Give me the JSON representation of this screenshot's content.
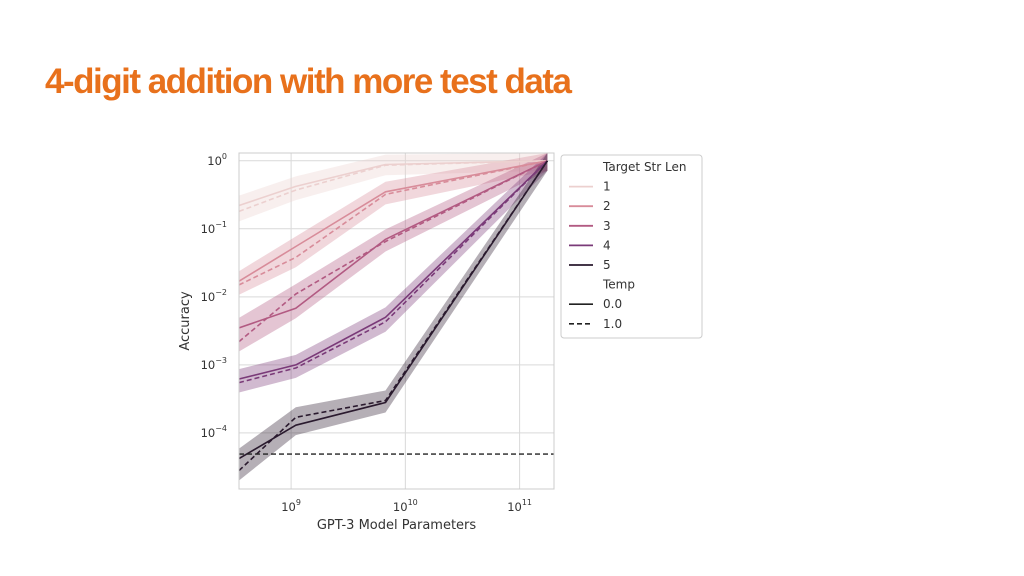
{
  "slide": {
    "title": "4-digit addition with more test data"
  },
  "chart_data": {
    "type": "line",
    "xlabel": "GPT-3 Model Parameters",
    "ylabel": "Accuracy",
    "x_scale": "log",
    "y_scale": "log",
    "xlim": [
      350000000.0,
      200000000000.0
    ],
    "ylim": [
      1.5e-05,
      1.3
    ],
    "x_ticks": [
      {
        "v": 1000000000.0,
        "base": "10",
        "exp": "9"
      },
      {
        "v": 10000000000.0,
        "base": "10",
        "exp": "10"
      },
      {
        "v": 100000000000.0,
        "base": "10",
        "exp": "11"
      }
    ],
    "y_ticks": [
      {
        "v": 1,
        "base": "10",
        "exp": "0"
      },
      {
        "v": 0.1,
        "base": "10",
        "exp": "−1"
      },
      {
        "v": 0.01,
        "base": "10",
        "exp": "−2"
      },
      {
        "v": 0.001,
        "base": "10",
        "exp": "−3"
      },
      {
        "v": 0.0001,
        "base": "10",
        "exp": "−4"
      }
    ],
    "grid": true,
    "x": [
      350000000.0,
      1100000000.0,
      6700000000.0,
      175000000000.0
    ],
    "series": [
      {
        "target_str_len": "1",
        "temp": "0.0",
        "color": "#ecd0cf",
        "values": [
          0.22,
          0.42,
          0.88,
          1.0
        ]
      },
      {
        "target_str_len": "1",
        "temp": "1.0",
        "color": "#ecd0cf",
        "values": [
          0.18,
          0.37,
          0.86,
          1.0
        ]
      },
      {
        "target_str_len": "2",
        "temp": "0.0",
        "color": "#d88c9a",
        "values": [
          0.017,
          0.055,
          0.35,
          1.0
        ]
      },
      {
        "target_str_len": "2",
        "temp": "1.0",
        "color": "#d88c9a",
        "values": [
          0.015,
          0.038,
          0.32,
          1.0
        ]
      },
      {
        "target_str_len": "3",
        "temp": "0.0",
        "color": "#b25a82",
        "values": [
          0.0035,
          0.0068,
          0.07,
          1.0
        ]
      },
      {
        "target_str_len": "3",
        "temp": "1.0",
        "color": "#b25a82",
        "values": [
          0.0022,
          0.011,
          0.065,
          1.0
        ]
      },
      {
        "target_str_len": "4",
        "temp": "0.0",
        "color": "#7a3a78",
        "values": [
          0.00062,
          0.001,
          0.005,
          1.0
        ]
      },
      {
        "target_str_len": "4",
        "temp": "1.0",
        "color": "#7a3a78",
        "values": [
          0.00055,
          0.0009,
          0.0043,
          1.0
        ]
      },
      {
        "target_str_len": "5",
        "temp": "0.0",
        "color": "#2a1a2e",
        "values": [
          4.2e-05,
          0.00013,
          0.00028,
          1.0
        ]
      },
      {
        "target_str_len": "5",
        "temp": "1.0",
        "color": "#2a1a2e",
        "values": [
          2.8e-05,
          0.00017,
          0.0003,
          1.0
        ]
      }
    ],
    "reference_line": {
      "y": 4.9e-05,
      "style": "dashed",
      "color": "#222222"
    },
    "legend": {
      "placement": "right",
      "title_1": "Target Str Len",
      "entries_1": [
        {
          "label": "1",
          "color": "#ecd0cf"
        },
        {
          "label": "2",
          "color": "#d88c9a"
        },
        {
          "label": "3",
          "color": "#b25a82"
        },
        {
          "label": "4",
          "color": "#7a3a78"
        },
        {
          "label": "5",
          "color": "#2a1a2e"
        }
      ],
      "title_2": "Temp",
      "entries_2": [
        {
          "label": "0.0",
          "style": "solid"
        },
        {
          "label": "1.0",
          "style": "dashed"
        }
      ]
    }
  }
}
